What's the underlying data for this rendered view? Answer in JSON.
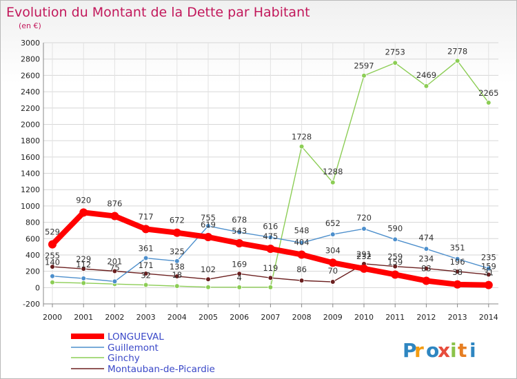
{
  "chart_data": {
    "type": "line",
    "title": "Evolution du Montant de la Dette par Habitant",
    "subtitle": "(en €)",
    "x": [
      "2000",
      "2001",
      "2002",
      "2003",
      "2004",
      "2005",
      "2006",
      "2007",
      "2008",
      "2009",
      "2010",
      "2011",
      "2012",
      "2013",
      "2014"
    ],
    "ylim": [
      -200,
      3000
    ],
    "yticks": [
      -200,
      0,
      200,
      400,
      600,
      800,
      1000,
      1200,
      1400,
      1600,
      1800,
      2000,
      2200,
      2400,
      2600,
      2800,
      3000
    ],
    "grid": true,
    "legend_position": "bottom-left",
    "series": [
      {
        "name": "LONGUEVAL",
        "color": "#ff0000",
        "values": [
          529,
          920,
          876,
          717,
          672,
          619,
          543,
          475,
          404,
          304,
          232,
          159,
          83,
          38,
          31
        ],
        "labels": [
          "529",
          "920",
          "876",
          "717",
          "672",
          "619",
          "543",
          "475",
          "404",
          "304",
          "232",
          "159",
          "83",
          "38",
          "31"
        ]
      },
      {
        "name": "Guillemont",
        "color": "#4d8fcc",
        "values": [
          140,
          112,
          75,
          361,
          325,
          755,
          678,
          616,
          548,
          652,
          720,
          590,
          474,
          351,
          235
        ],
        "labels": [
          "140",
          "112",
          "75",
          "361",
          "325",
          "755",
          "678",
          "616",
          "548",
          "652",
          "720",
          "590",
          "474",
          "351",
          "235"
        ]
      },
      {
        "name": "Ginchy",
        "color": "#8ccd55",
        "values": [
          64,
          55,
          43,
          32,
          18,
          5,
          4,
          4,
          1728,
          1288,
          2597,
          2753,
          2469,
          2778,
          2265
        ],
        "labels": [
          "",
          "",
          "",
          "32",
          "18",
          "",
          "4",
          "",
          "1728",
          "1288",
          "2597",
          "2753",
          "2469",
          "2778",
          "2265"
        ]
      },
      {
        "name": "Montauban-de-Picardie",
        "color": "#6b1f1f",
        "values": [
          255,
          229,
          201,
          171,
          138,
          102,
          169,
          119,
          86,
          70,
          291,
          259,
          234,
          196,
          159
        ],
        "labels": [
          "255",
          "229",
          "201",
          "171",
          "138",
          "102",
          "169",
          "119",
          "86",
          "70",
          "291",
          "259",
          "234",
          "196",
          "159"
        ]
      }
    ]
  },
  "branding": {
    "logo": "Proxiti"
  }
}
